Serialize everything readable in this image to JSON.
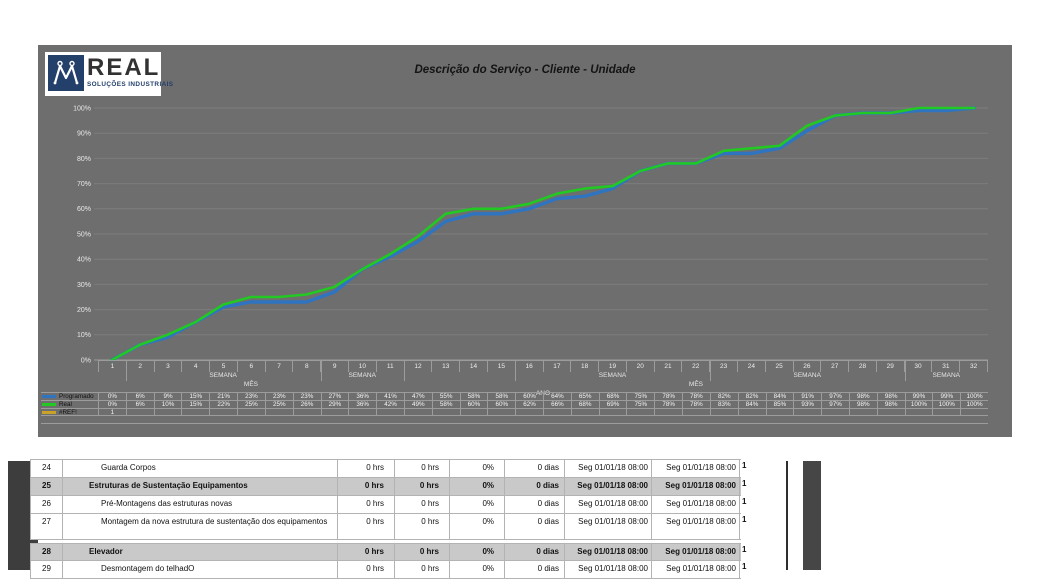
{
  "header": {
    "logo": {
      "brand": "REAL",
      "tagline": "SOLUÇÕES INDUSTRIAIS",
      "icon": "real-emblem-icon",
      "navy": "#23406b"
    },
    "title": "Descrição do Serviço - Cliente - Unidade"
  },
  "chart_data": {
    "type": "line",
    "title": "Descrição do Serviço - Cliente - Unidade",
    "background": "#6e6e6e",
    "grid": true,
    "legend_position": "bottom-left-table",
    "ylim": [
      0,
      100
    ],
    "ytick_step": 10,
    "ytick_suffix": "%",
    "x": [
      1,
      2,
      3,
      4,
      5,
      6,
      7,
      8,
      9,
      10,
      11,
      12,
      13,
      14,
      15,
      16,
      17,
      18,
      19,
      20,
      21,
      22,
      23,
      24,
      25,
      26,
      27,
      28,
      29,
      30,
      31,
      32
    ],
    "series": [
      {
        "name": "Programado",
        "color": "#2e74c0",
        "values": [
          0,
          6,
          9,
          15,
          21,
          23,
          23,
          23,
          27,
          36,
          41,
          47,
          55,
          58,
          58,
          60,
          64,
          65,
          68,
          75,
          78,
          78,
          82,
          82,
          84,
          91,
          97,
          98,
          98,
          99,
          99,
          100
        ]
      },
      {
        "name": "Real",
        "color": "#22c922",
        "values": [
          0,
          6,
          10,
          15,
          22,
          25,
          25,
          26,
          29,
          36,
          42,
          49,
          58,
          60,
          60,
          62,
          66,
          68,
          69,
          75,
          78,
          78,
          83,
          84,
          85,
          93,
          97,
          98,
          98,
          100,
          100,
          100
        ]
      },
      {
        "name": "#REF!",
        "color": "#c9a227",
        "values": null,
        "table_cells_first": "1"
      }
    ],
    "axis_groups": {
      "semana_label": "SEMANA",
      "mes_label": "MÊS",
      "ano_label": "ANO",
      "semana_anchor_weeks": [
        5,
        10,
        19,
        26,
        31
      ],
      "mes_anchor_weeks": [
        6,
        22
      ],
      "ano_anchor_week": 16.5,
      "group_boundaries_after_weeks": [
        1,
        8,
        11,
        15,
        22,
        29
      ]
    }
  },
  "task_table": {
    "rows": [
      {
        "num": "24",
        "name": "Guarda Corpos",
        "style": "child",
        "values": [
          "0 hrs",
          "0 hrs",
          "0%",
          "0 dias",
          "Seg 01/01/18 08:00",
          "Seg 01/01/18 08:00"
        ],
        "marker": "1"
      },
      {
        "num": "25",
        "name": "Estruturas de Sustentação Equipamentos",
        "style": "summary",
        "values": [
          "0 hrs",
          "0 hrs",
          "0%",
          "0 dias",
          "Seg 01/01/18 08:00",
          "Seg 01/01/18 08:00"
        ],
        "marker": "1"
      },
      {
        "num": "26",
        "name": "Pré-Montagens das estruturas novas",
        "style": "child",
        "values": [
          "0 hrs",
          "0 hrs",
          "0%",
          "0 dias",
          "Seg 01/01/18 08:00",
          "Seg 01/01/18 08:00"
        ],
        "marker": "1"
      },
      {
        "num": "27",
        "name": "Montagem da nova estrutura de sustentação dos equipamentos",
        "style": "child",
        "tall": true,
        "values": [
          "0 hrs",
          "0 hrs",
          "0%",
          "0 dias",
          "Seg 01/01/18 08:00",
          "Seg 01/01/18 08:00"
        ],
        "marker": "1"
      },
      {
        "num": "28",
        "name": "Elevador",
        "style": "summary",
        "gap_before": true,
        "values": [
          "0 hrs",
          "0 hrs",
          "0%",
          "0 dias",
          "Seg 01/01/18 08:00",
          "Seg 01/01/18 08:00"
        ],
        "marker": "1"
      },
      {
        "num": "29",
        "name": "Desmontagem do telhadO",
        "style": "child",
        "values": [
          "0 hrs",
          "0 hrs",
          "0%",
          "0 dias",
          "Seg 01/01/18 08:00",
          "Seg 01/01/18 08:00"
        ],
        "marker": "1"
      }
    ]
  }
}
